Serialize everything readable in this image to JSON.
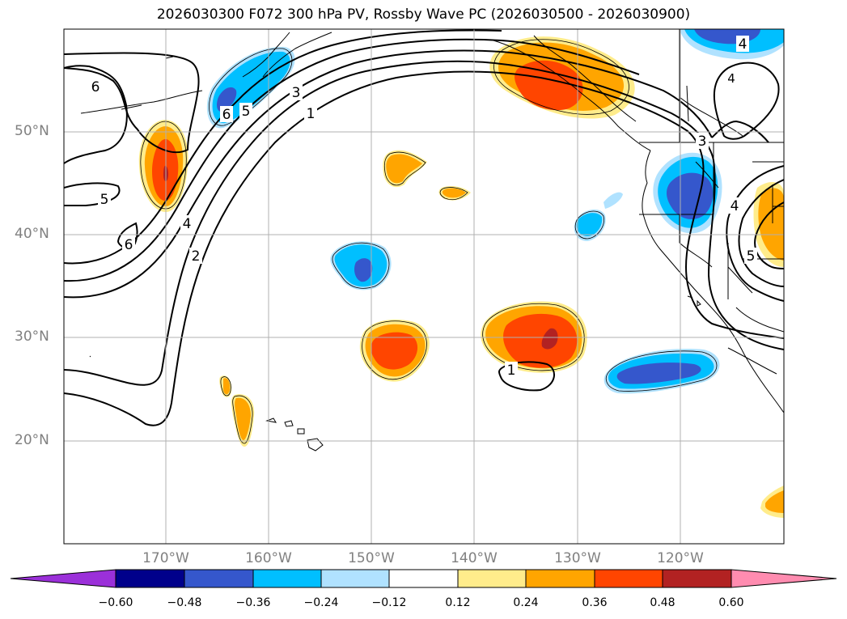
{
  "title": "2026030300 F072 300 hPa PV, Rossby Wave PC (2026030500 - 2026030900)",
  "lat_labels": [
    "50°N",
    "40°N",
    "30°N",
    "20°N"
  ],
  "lon_labels": [
    "170°W",
    "160°W",
    "150°W",
    "140°W",
    "130°W",
    "120°W"
  ],
  "contour_labels": [
    "6",
    "5",
    "6",
    "4",
    "2",
    "6",
    "5",
    "3",
    "1",
    "1",
    "4",
    "3",
    "4",
    "5"
  ],
  "colorbar": {
    "ticks": [
      "−0.60",
      "−0.48",
      "−0.36",
      "−0.24",
      "−0.12",
      "0.12",
      "0.24",
      "0.36",
      "0.48",
      "0.60"
    ],
    "colors": [
      "#9b30d9",
      "#00008b",
      "#3557cc",
      "#00bfff",
      "#b0e2ff",
      "#ffffff",
      "#ffec8b",
      "#ffa500",
      "#ff4500",
      "#b22222",
      "#ff8cb0"
    ]
  },
  "palette": {
    "pos_light": "#ffec8b",
    "pos_mid": "#ffa500",
    "pos_strong": "#ff4500",
    "pos_max": "#b22222",
    "neg_light": "#b0e2ff",
    "neg_mid": "#00bfff",
    "neg_strong": "#3557cc"
  }
}
